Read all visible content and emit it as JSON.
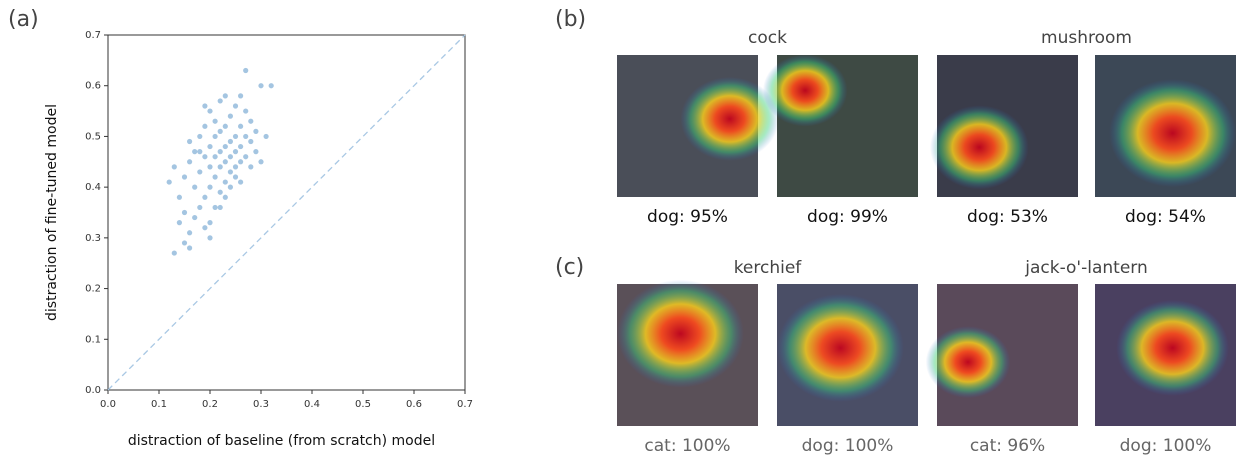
{
  "chart_data": {
    "type": "scatter",
    "panel_label": "(a)",
    "xlabel": "distraction of baseline (from scratch) model",
    "ylabel": "distraction of fine-tuned model",
    "color": "#4a8cc4",
    "x": [
      0.13,
      0.15,
      0.16,
      0.16,
      0.14,
      0.15,
      0.17,
      0.18,
      0.19,
      0.2,
      0.12,
      0.13,
      0.14,
      0.15,
      0.16,
      0.17,
      0.17,
      0.18,
      0.18,
      0.19,
      0.19,
      0.19,
      0.2,
      0.2,
      0.2,
      0.2,
      0.21,
      0.21,
      0.21,
      0.21,
      0.21,
      0.22,
      0.22,
      0.22,
      0.22,
      0.22,
      0.23,
      0.23,
      0.23,
      0.23,
      0.23,
      0.24,
      0.24,
      0.24,
      0.24,
      0.25,
      0.25,
      0.25,
      0.25,
      0.26,
      0.26,
      0.26,
      0.26,
      0.27,
      0.27,
      0.27,
      0.28,
      0.28,
      0.28,
      0.29,
      0.29,
      0.3,
      0.3,
      0.31,
      0.32,
      0.27,
      0.24,
      0.26,
      0.2,
      0.22,
      0.18,
      0.16,
      0.19,
      0.23,
      0.25
    ],
    "y": [
      0.27,
      0.29,
      0.28,
      0.31,
      0.33,
      0.35,
      0.34,
      0.36,
      0.32,
      0.33,
      0.41,
      0.44,
      0.38,
      0.42,
      0.45,
      0.4,
      0.47,
      0.43,
      0.5,
      0.38,
      0.46,
      0.52,
      0.4,
      0.44,
      0.48,
      0.55,
      0.36,
      0.42,
      0.46,
      0.5,
      0.53,
      0.39,
      0.44,
      0.47,
      0.51,
      0.57,
      0.41,
      0.45,
      0.48,
      0.52,
      0.58,
      0.43,
      0.46,
      0.49,
      0.54,
      0.44,
      0.47,
      0.5,
      0.56,
      0.45,
      0.48,
      0.52,
      0.58,
      0.46,
      0.5,
      0.55,
      0.44,
      0.49,
      0.53,
      0.47,
      0.51,
      0.45,
      0.6,
      0.5,
      0.6,
      0.63,
      0.4,
      0.41,
      0.3,
      0.36,
      0.47,
      0.49,
      0.56,
      0.38,
      0.42
    ],
    "xlim": [
      0,
      0.7
    ],
    "ylim": [
      0,
      0.7
    ],
    "xticks": [
      {
        "value": 0,
        "label": "0.0"
      },
      0.1,
      0.2,
      0.3,
      0.4,
      0.5,
      0.6,
      0.7
    ],
    "yticks": [
      {
        "value": 0,
        "label": "0.0"
      },
      0.1,
      0.2,
      0.3,
      0.4,
      0.5,
      0.6,
      0.7
    ]
  },
  "panels": [
    {
      "label": "(b)",
      "groups": [
        {
          "title": "cock",
          "images": [
            {
              "caption": "dog: 95%"
            },
            {
              "caption": "dog: 99%"
            }
          ]
        },
        {
          "title": "mushroom",
          "images": [
            {
              "caption": "dog: 53%"
            },
            {
              "caption": "dog: 54%"
            }
          ]
        }
      ]
    },
    {
      "label": "(c)",
      "groups": [
        {
          "title": "kerchief",
          "images": [
            {
              "caption": "cat: 100%"
            },
            {
              "caption": "dog: 100%"
            }
          ]
        },
        {
          "title": "jack-o'-lantern",
          "images": [
            {
              "caption": "cat: 96%"
            },
            {
              "caption": "dog: 100%"
            }
          ]
        }
      ]
    }
  ]
}
